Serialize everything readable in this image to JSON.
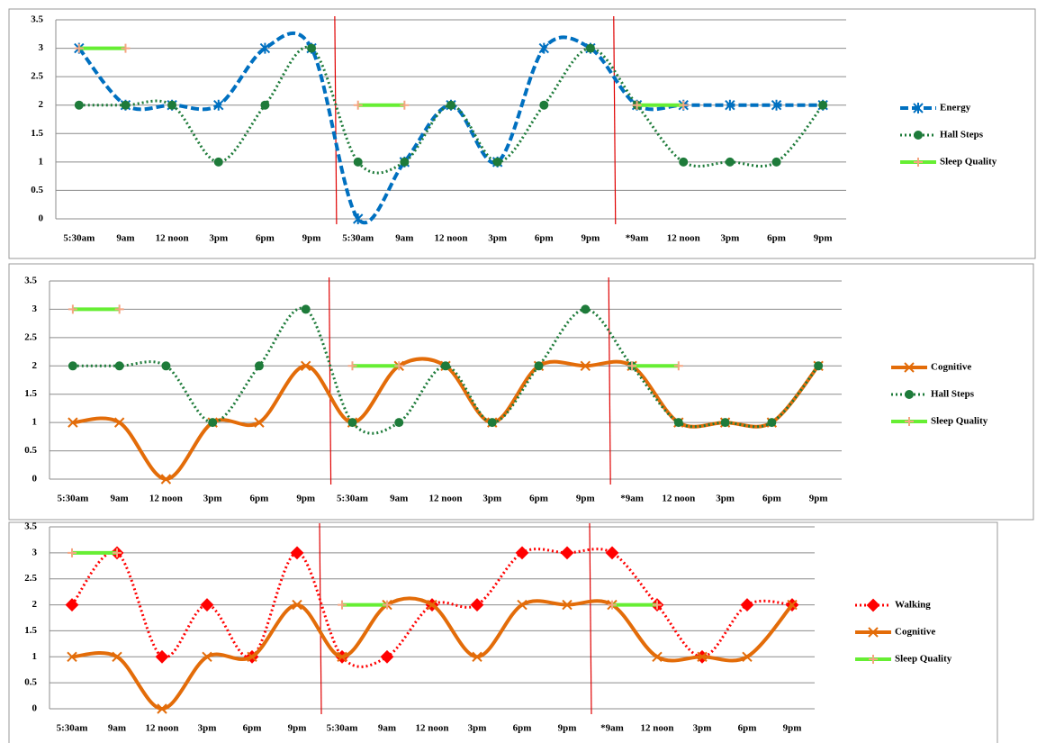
{
  "chart_data": [
    {
      "type": "line",
      "categories": [
        "5:30am",
        "9am",
        "12 noon",
        "3pm",
        "6pm",
        "9pm",
        "5:30am",
        "9am",
        "12 noon",
        "3pm",
        "6pm",
        "9pm",
        "*9am",
        "12 noon",
        "3pm",
        "6pm",
        "9pm"
      ],
      "ylim": [
        0,
        3.5
      ],
      "yticks": [
        0,
        0.5,
        1,
        1.5,
        2,
        2.5,
        3,
        3.5
      ],
      "grid": true,
      "series": [
        {
          "name": "Energy",
          "color": "#0070c0",
          "dash": "dashed",
          "marker": "star",
          "values": [
            3,
            2,
            2,
            2,
            3,
            3,
            0,
            1,
            2,
            1,
            3,
            3,
            2,
            2,
            2,
            2,
            2
          ]
        },
        {
          "name": "Hall Steps",
          "color": "#1e7b3a",
          "dash": "dotted",
          "marker": "circle",
          "values": [
            2,
            2,
            2,
            1,
            2,
            3,
            1,
            1,
            2,
            1,
            2,
            3,
            2,
            1,
            1,
            1,
            2
          ]
        },
        {
          "name": "Sleep Quality",
          "color": "#66ee33",
          "dash": "solid",
          "marker": "plus",
          "marker_color": "#f4a582",
          "values": [
            3,
            3,
            null,
            null,
            null,
            null,
            2,
            2,
            null,
            null,
            null,
            null,
            2,
            2,
            null,
            null,
            null
          ]
        }
      ]
    },
    {
      "type": "line",
      "categories": [
        "5:30am",
        "9am",
        "12 noon",
        "3pm",
        "6pm",
        "9pm",
        "5:30am",
        "9am",
        "12 noon",
        "3pm",
        "6pm",
        "9pm",
        "*9am",
        "12 noon",
        "3pm",
        "6pm",
        "9pm"
      ],
      "ylim": [
        0,
        3.5
      ],
      "yticks": [
        0,
        0.5,
        1,
        1.5,
        2,
        2.5,
        3,
        3.5
      ],
      "grid": true,
      "series": [
        {
          "name": "Cognitive",
          "color": "#e36c09",
          "dash": "solid",
          "marker": "x",
          "values": [
            1,
            1,
            0,
            1,
            1,
            2,
            1,
            2,
            2,
            1,
            2,
            2,
            2,
            1,
            1,
            1,
            2
          ]
        },
        {
          "name": "Hall Steps",
          "color": "#1e7b3a",
          "dash": "dotted",
          "marker": "circle",
          "values": [
            2,
            2,
            2,
            1,
            2,
            3,
            1,
            1,
            2,
            1,
            2,
            3,
            2,
            1,
            1,
            1,
            2
          ]
        },
        {
          "name": "Sleep Quality",
          "color": "#66ee33",
          "dash": "solid",
          "marker": "plus",
          "marker_color": "#f4a582",
          "values": [
            3,
            3,
            null,
            null,
            null,
            null,
            2,
            2,
            null,
            null,
            null,
            null,
            2,
            2,
            null,
            null,
            null
          ]
        }
      ]
    },
    {
      "type": "line",
      "categories": [
        "5:30am",
        "9am",
        "12 noon",
        "3pm",
        "6pm",
        "9pm",
        "5:30am",
        "9am",
        "12 noon",
        "3pm",
        "6pm",
        "9pm",
        "*9am",
        "12 noon",
        "3pm",
        "6pm",
        "9pm"
      ],
      "ylim": [
        0,
        3.5
      ],
      "yticks": [
        0,
        0.5,
        1,
        1.5,
        2,
        2.5,
        3,
        3.5
      ],
      "grid": true,
      "series": [
        {
          "name": "Walking",
          "color": "#ff0000",
          "dash": "dotted",
          "marker": "diamond",
          "values": [
            2,
            3,
            1,
            2,
            1,
            3,
            1,
            1,
            2,
            2,
            3,
            3,
            3,
            2,
            1,
            2,
            2
          ]
        },
        {
          "name": "Cognitive",
          "color": "#e36c09",
          "dash": "solid",
          "marker": "x",
          "values": [
            1,
            1,
            0,
            1,
            1,
            2,
            1,
            2,
            2,
            1,
            2,
            2,
            2,
            1,
            1,
            1,
            2
          ]
        },
        {
          "name": "Sleep Quality",
          "color": "#66ee33",
          "dash": "solid",
          "marker": "plus",
          "marker_color": "#f4a582",
          "values": [
            3,
            3,
            null,
            null,
            null,
            null,
            2,
            2,
            null,
            null,
            null,
            null,
            2,
            2,
            null,
            null,
            null
          ]
        }
      ]
    }
  ]
}
